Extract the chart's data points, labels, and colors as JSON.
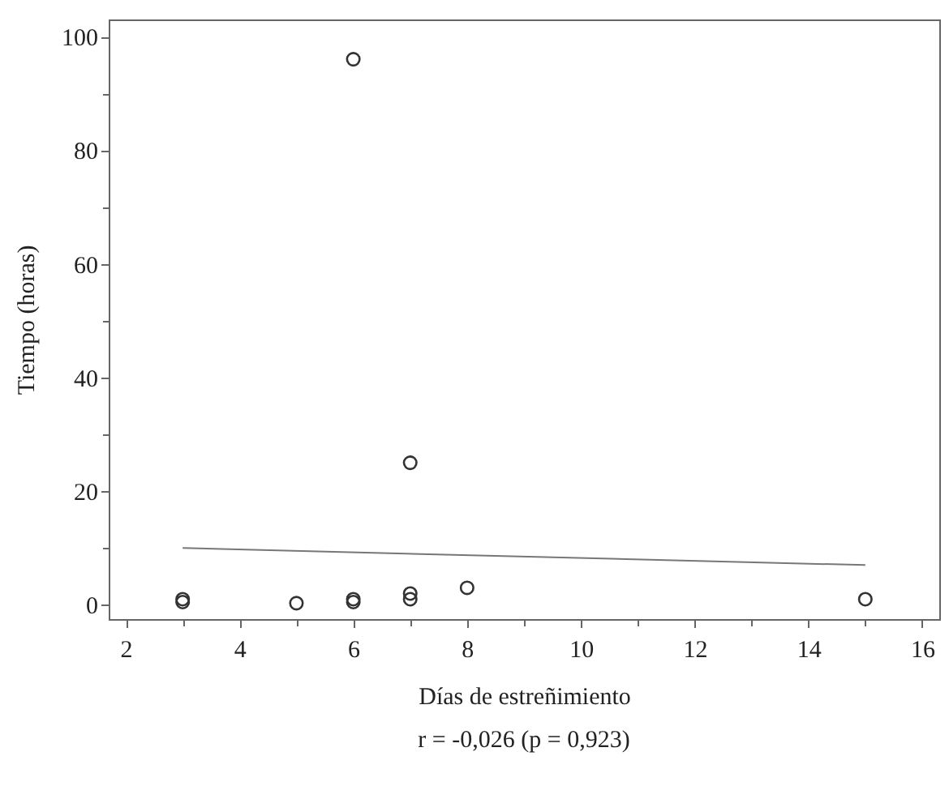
{
  "chart_data": {
    "type": "scatter",
    "xlabel": "Días de estreñimiento",
    "ylabel": "Tiempo (horas)",
    "annotations": [
      "r = -0,026 (p = 0,923)"
    ],
    "xlim": [
      1.7,
      16.3
    ],
    "ylim": [
      -2.5,
      103
    ],
    "xticks": [
      2,
      {
        "value": 3,
        "label": null
      },
      4,
      {
        "value": 5,
        "label": null
      },
      6,
      {
        "value": 7,
        "label": null
      },
      8,
      {
        "value": 9,
        "label": null
      },
      10,
      {
        "value": 11,
        "label": null
      },
      12,
      {
        "value": 13,
        "label": null
      },
      14,
      {
        "value": 15,
        "label": null
      },
      16
    ],
    "yticks": [
      0,
      {
        "value": 10,
        "label": null
      },
      20,
      {
        "value": 30,
        "label": null
      },
      40,
      {
        "value": 50,
        "label": null
      },
      60,
      {
        "value": 70,
        "label": null
      },
      80,
      {
        "value": 90,
        "label": null
      },
      100
    ],
    "grid": false,
    "marker": "circle",
    "series": [
      {
        "color": "#333333",
        "x": [
          3,
          3,
          5,
          6,
          6,
          6,
          7,
          7,
          7,
          8,
          15
        ],
        "values": [
          0.5,
          1,
          0.3,
          0.5,
          1,
          96,
          1,
          2,
          25,
          3,
          1
        ]
      },
      {
        "type": "line",
        "marker": "none",
        "color": "#777777",
        "line_style": "solid",
        "x": [
          3,
          15
        ],
        "values": [
          10,
          7
        ]
      }
    ]
  }
}
